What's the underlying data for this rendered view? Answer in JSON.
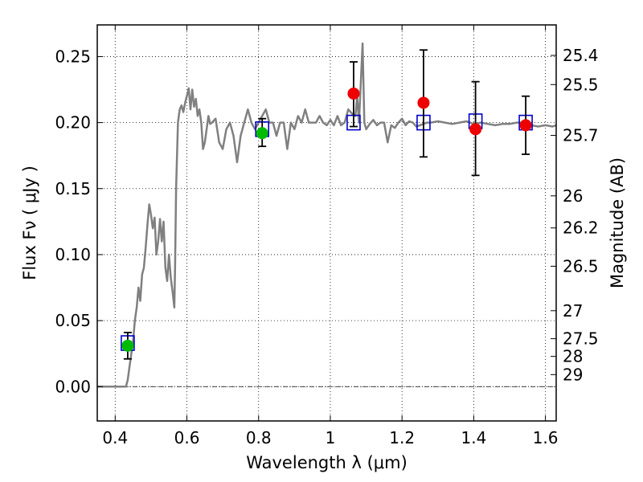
{
  "chart_data": {
    "type": "scatter",
    "title": "",
    "xlabel": "Wavelength  λ (μm)",
    "ylabel": "Flux  Fν  ( μJy )",
    "y2label": "Magnitude (AB)",
    "xlim": [
      0.35,
      1.63
    ],
    "ylim": [
      -0.026,
      0.274
    ],
    "grid": true,
    "legend": "none",
    "x_ticks": [
      0.4,
      0.6,
      0.8,
      1.0,
      1.2,
      1.4,
      1.6
    ],
    "x_tick_labels": [
      "0.4",
      "0.6",
      "0.8",
      "1",
      "1.2",
      "1.4",
      "1.6"
    ],
    "y_ticks": [
      0.0,
      0.05,
      0.1,
      0.15,
      0.2,
      0.25
    ],
    "y_tick_labels": [
      "0.00",
      "0.05",
      "0.10",
      "0.15",
      "0.20",
      "0.25"
    ],
    "mag_ticks": [
      {
        "label": "25.4",
        "flux": 0.2509
      },
      {
        "label": "25.5",
        "flux": 0.2288
      },
      {
        "label": "25.7",
        "flux": 0.1903
      },
      {
        "label": "26",
        "flux": 0.1445
      },
      {
        "label": "26.2",
        "flux": 0.1202
      },
      {
        "label": "26.5",
        "flux": 0.0912
      },
      {
        "label": "27",
        "flux": 0.0575
      },
      {
        "label": "27.5",
        "flux": 0.0363
      },
      {
        "label": "28",
        "flux": 0.0229
      },
      {
        "label": "29",
        "flux": 0.0091
      }
    ],
    "zero_line": 0.0,
    "series": [
      {
        "kind": "line",
        "color": "#808080",
        "x": [
          0.35,
          0.43,
          0.435,
          0.44,
          0.445,
          0.45,
          0.455,
          0.46,
          0.465,
          0.47,
          0.475,
          0.48,
          0.485,
          0.49,
          0.495,
          0.5,
          0.505,
          0.51,
          0.515,
          0.52,
          0.525,
          0.53,
          0.535,
          0.54,
          0.545,
          0.55,
          0.555,
          0.56,
          0.565,
          0.567,
          0.57,
          0.575,
          0.58,
          0.585,
          0.59,
          0.595,
          0.6,
          0.605,
          0.61,
          0.615,
          0.62,
          0.625,
          0.63,
          0.635,
          0.64,
          0.645,
          0.65,
          0.655,
          0.66,
          0.665,
          0.67,
          0.68,
          0.69,
          0.7,
          0.71,
          0.72,
          0.73,
          0.74,
          0.75,
          0.76,
          0.77,
          0.78,
          0.79,
          0.8,
          0.81,
          0.82,
          0.83,
          0.84,
          0.85,
          0.86,
          0.87,
          0.88,
          0.89,
          0.9,
          0.91,
          0.92,
          0.93,
          0.94,
          0.95,
          0.96,
          0.97,
          0.98,
          0.99,
          1.0,
          1.01,
          1.02,
          1.03,
          1.04,
          1.05,
          1.06,
          1.07,
          1.075,
          1.08,
          1.085,
          1.09,
          1.095,
          1.1,
          1.11,
          1.12,
          1.13,
          1.14,
          1.15,
          1.16,
          1.17,
          1.18,
          1.19,
          1.2,
          1.21,
          1.22,
          1.23,
          1.24,
          1.25,
          1.26,
          1.27,
          1.28,
          1.3,
          1.32,
          1.34,
          1.36,
          1.38,
          1.4,
          1.42,
          1.44,
          1.46,
          1.48,
          1.5,
          1.52,
          1.54,
          1.56,
          1.58,
          1.6,
          1.62,
          1.63
        ],
        "y": [
          0.0,
          0.0,
          0.005,
          0.015,
          0.025,
          0.035,
          0.05,
          0.06,
          0.075,
          0.065,
          0.085,
          0.09,
          0.105,
          0.123,
          0.138,
          0.13,
          0.12,
          0.128,
          0.1,
          0.11,
          0.127,
          0.11,
          0.125,
          0.09,
          0.08,
          0.1,
          0.083,
          0.072,
          0.06,
          0.09,
          0.15,
          0.2,
          0.21,
          0.213,
          0.208,
          0.215,
          0.22,
          0.226,
          0.21,
          0.225,
          0.212,
          0.218,
          0.205,
          0.21,
          0.2,
          0.18,
          0.185,
          0.195,
          0.205,
          0.199,
          0.2,
          0.203,
          0.185,
          0.18,
          0.195,
          0.2,
          0.19,
          0.17,
          0.19,
          0.2,
          0.21,
          0.2,
          0.195,
          0.2,
          0.205,
          0.21,
          0.2,
          0.2,
          0.19,
          0.2,
          0.2,
          0.18,
          0.2,
          0.195,
          0.205,
          0.2,
          0.21,
          0.2,
          0.2,
          0.2,
          0.205,
          0.2,
          0.198,
          0.202,
          0.198,
          0.205,
          0.198,
          0.2,
          0.21,
          0.207,
          0.205,
          0.22,
          0.2,
          0.23,
          0.26,
          0.2,
          0.195,
          0.199,
          0.202,
          0.198,
          0.2,
          0.2,
          0.185,
          0.198,
          0.196,
          0.2,
          0.203,
          0.198,
          0.201,
          0.2,
          0.197,
          0.198,
          0.199,
          0.2,
          0.2,
          0.201,
          0.2,
          0.199,
          0.2,
          0.201,
          0.199,
          0.2,
          0.199,
          0.198,
          0.199,
          0.199,
          0.2,
          0.2,
          0.198,
          0.197,
          0.198,
          0.197,
          0.198
        ]
      },
      {
        "kind": "marker-square",
        "color": "#0000cc",
        "x": [
          0.435,
          0.81,
          1.065,
          1.26,
          1.405,
          1.545
        ],
        "y": [
          0.033,
          0.195,
          0.2,
          0.2,
          0.201,
          0.2
        ]
      },
      {
        "kind": "marker-circle",
        "color": "#00bb00",
        "x": [
          0.435,
          0.81
        ],
        "y": [
          0.031,
          0.192
        ],
        "err_low": [
          0.021,
          0.182
        ],
        "err_high": [
          0.041,
          0.203
        ]
      },
      {
        "kind": "marker-circle",
        "color": "#ee0000",
        "x": [
          1.065,
          1.26,
          1.405,
          1.545
        ],
        "y": [
          0.222,
          0.215,
          0.195,
          0.198
        ],
        "err_low": [
          0.197,
          0.174,
          0.16,
          0.176
        ],
        "err_high": [
          0.246,
          0.255,
          0.231,
          0.22
        ]
      }
    ]
  }
}
